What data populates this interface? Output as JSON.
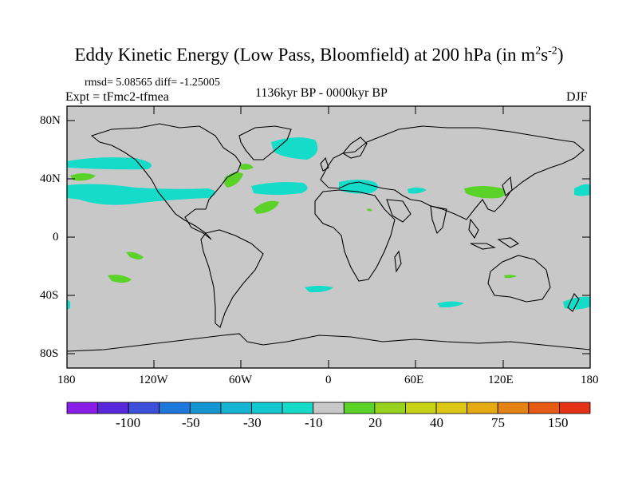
{
  "figure": {
    "title_main": "Eddy Kinetic Energy (Low Pass, Bloomfield) at 200 hPa (in m",
    "title_sup1": "2",
    "title_mid": "s",
    "title_sup2": "-2",
    "title_end": ")",
    "rmsd_text": "rmsd= 5.08565 diff= -1.25005",
    "expt_text": "Expt = tFmc2-tfmea",
    "period_text": "1136kyr BP - 0000kyr BP",
    "season_text": "DJF"
  },
  "axes": {
    "lat_ticks": [
      "80N",
      "40N",
      "0",
      "40S",
      "80S"
    ],
    "lon_ticks": [
      "180",
      "120W",
      "60W",
      "0",
      "60E",
      "120E",
      "180"
    ]
  },
  "colorbar": {
    "colors": [
      "#8a1ee8",
      "#5a28dc",
      "#3c50dc",
      "#1e78dc",
      "#1496d2",
      "#14b4d2",
      "#14c8d2",
      "#14dcc8",
      "#c8c8c8",
      "#5ad228",
      "#96d21e",
      "#c8d214",
      "#dcc814",
      "#e6aa14",
      "#e68214",
      "#e65a14",
      "#e63214"
    ],
    "labels": [
      "-100",
      "-50",
      "-30",
      "-10",
      "20",
      "40",
      "75",
      "150"
    ]
  },
  "map": {
    "land_color": "#c8c8c8",
    "negative_color": "#14dcc8",
    "positive_color": "#5ad228"
  }
}
